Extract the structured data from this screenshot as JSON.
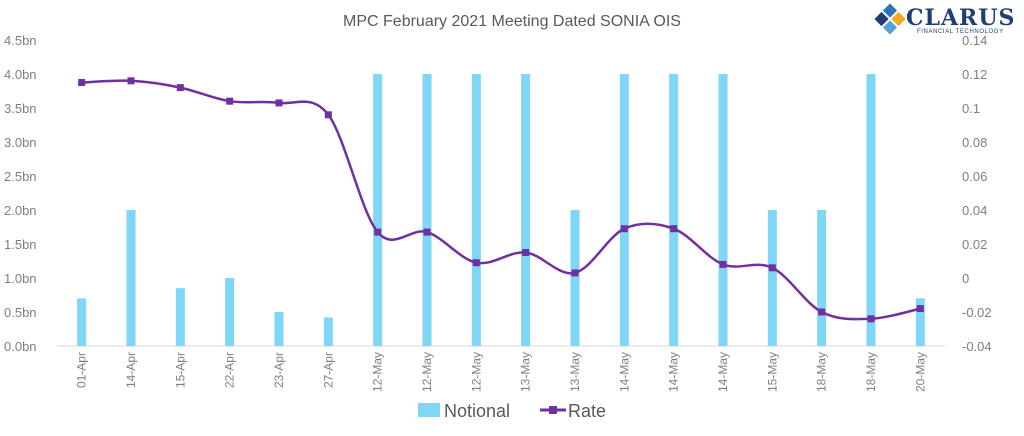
{
  "chart_data": {
    "type": "bar+line",
    "title": "MPC February 2021 Meeting Dated SONIA OIS",
    "categories": [
      "01-Apr",
      "14-Apr",
      "15-Apr",
      "22-Apr",
      "23-Apr",
      "27-Apr",
      "12-May",
      "12-May",
      "12-May",
      "13-May",
      "13-May",
      "14-May",
      "14-May",
      "14-May",
      "15-May",
      "18-May",
      "18-May",
      "20-May"
    ],
    "series": [
      {
        "name": "Notional",
        "type": "bar",
        "axis": "left",
        "color": "#7fd6f5",
        "values": [
          0.7,
          2.0,
          0.85,
          1.0,
          0.5,
          0.42,
          4.0,
          4.0,
          4.0,
          4.0,
          2.0,
          4.0,
          4.0,
          4.0,
          2.0,
          2.0,
          4.0,
          0.7
        ]
      },
      {
        "name": "Rate",
        "type": "line",
        "axis": "right",
        "color": "#7030a0",
        "values": [
          0.115,
          0.116,
          0.112,
          0.104,
          0.103,
          0.096,
          0.027,
          0.027,
          0.009,
          0.015,
          0.003,
          0.029,
          0.029,
          0.008,
          0.006,
          -0.02,
          -0.024,
          -0.018
        ]
      }
    ],
    "y_left": {
      "ylim": [
        0,
        4.5
      ],
      "ticks": [
        "0.0bn",
        "0.5bn",
        "1.0bn",
        "1.5bn",
        "2.0bn",
        "2.5bn",
        "3.0bn",
        "3.5bn",
        "4.0bn",
        "4.5bn"
      ]
    },
    "y_right": {
      "ylim": [
        -0.04,
        0.14
      ],
      "ticks": [
        "-0.04",
        "-0.02",
        "0",
        "0.02",
        "0.04",
        "0.06",
        "0.08",
        "0.1",
        "0.12",
        "0.14"
      ]
    },
    "legend": {
      "position": "bottom",
      "items": [
        "Notional",
        "Rate"
      ]
    },
    "grid": false
  },
  "logo": {
    "name": "CLARUS",
    "tagline": "FINANCIAL TECHNOLOGY"
  }
}
